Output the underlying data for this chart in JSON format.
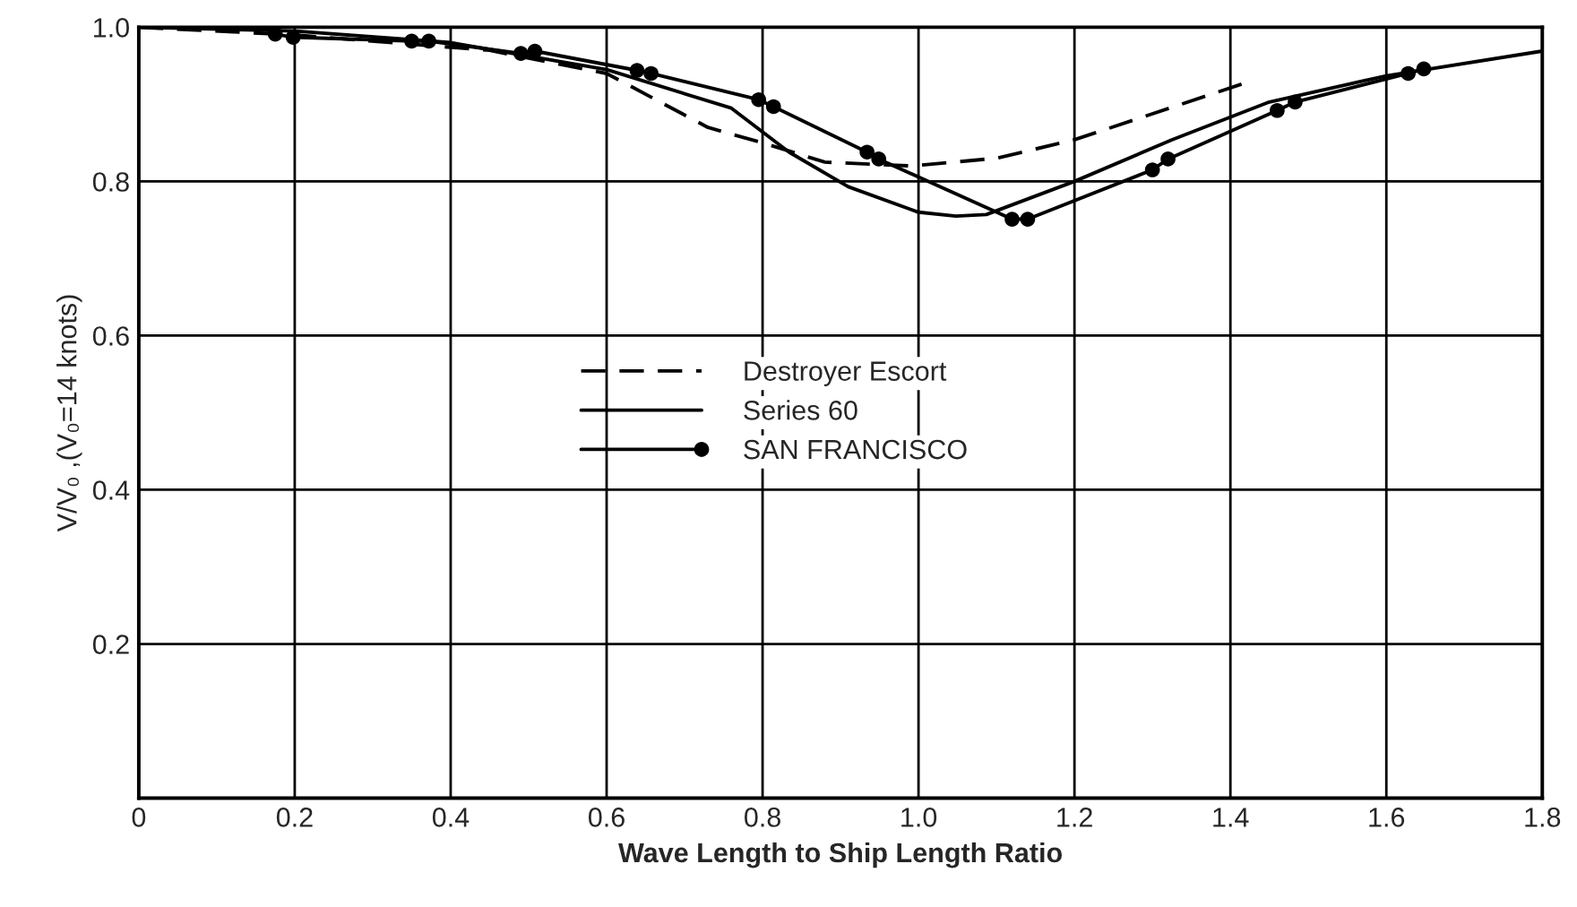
{
  "chart_data": {
    "type": "line",
    "xlabel": "Wave Length to Ship Length Ratio",
    "ylabel": "V/V₀ ,(V₀=14 knots)",
    "xlim": [
      0,
      1.8
    ],
    "ylim": [
      0,
      1.0
    ],
    "xticks": [
      {
        "value": 0,
        "label": "0"
      },
      0.2,
      0.4,
      0.6,
      0.8,
      {
        "value": 1.0,
        "label": "1.0"
      },
      1.2,
      1.4,
      1.6,
      1.8
    ],
    "yticks": [
      {
        "value": 0,
        "label": null
      },
      0.2,
      0.4,
      0.6,
      0.8,
      {
        "value": 1.0,
        "label": "1.0"
      }
    ],
    "grid": true,
    "legend": "center",
    "series": [
      {
        "name": "Destroyer Escort",
        "color": "#000000",
        "line_style": "dashed",
        "marker": "none",
        "x": [
          0,
          0.2,
          0.45,
          0.6,
          0.73,
          0.8,
          0.88,
          0.99,
          1.1,
          1.2,
          1.42
        ],
        "values": [
          1.0,
          0.99,
          0.97,
          0.94,
          0.87,
          0.85,
          0.825,
          0.82,
          0.83,
          0.854,
          0.928
        ]
      },
      {
        "name": "Series 60",
        "color": "#000000",
        "line_style": "solid",
        "marker": "none",
        "x": [
          0,
          0.2,
          0.4,
          0.6,
          0.76,
          0.834,
          0.91,
          1.0,
          1.048,
          1.087,
          1.2,
          1.325,
          1.45,
          1.6,
          1.8
        ],
        "values": [
          1.0,
          0.995,
          0.98,
          0.945,
          0.895,
          0.838,
          0.793,
          0.76,
          0.755,
          0.757,
          0.8,
          0.854,
          0.903,
          0.937,
          0.969
        ]
      },
      {
        "name": "SAN FRANCISCO",
        "color": "#000000",
        "line_style": "solid",
        "marker": "circle",
        "x": [
          0.175,
          0.198,
          0.35,
          0.372,
          0.49,
          0.508,
          0.639,
          0.657,
          0.795,
          0.814,
          0.934,
          0.949,
          1.12,
          1.14,
          1.3,
          1.32,
          1.46,
          1.483,
          1.628,
          1.648
        ],
        "values": [
          0.991,
          0.987,
          0.982,
          0.982,
          0.966,
          0.969,
          0.944,
          0.94,
          0.906,
          0.897,
          0.838,
          0.829,
          0.751,
          0.751,
          0.815,
          0.829,
          0.892,
          0.903,
          0.94,
          0.946
        ]
      }
    ]
  }
}
